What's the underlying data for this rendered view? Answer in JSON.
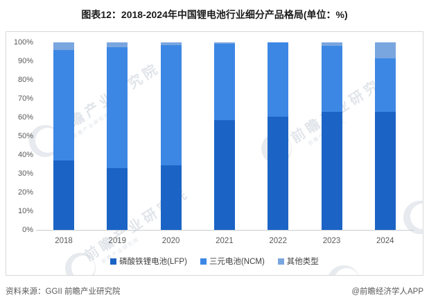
{
  "title": "图表12：2018-2024年中国锂电池行业细分产品格局(单位：%)",
  "footer": {
    "source": "资料来源：GGII 前瞻产业研究院",
    "credit": "@前瞻经济学人APP"
  },
  "watermark": {
    "text": "前瞻产业研究院",
    "sub": "前瞻产业研究院"
  },
  "chart_data": {
    "type": "stacked_bar_100",
    "title": "图表12：2018-2024年中国锂电池行业细分产品格局(单位：%)",
    "categories": [
      "2018",
      "2019",
      "2020",
      "2021",
      "2022",
      "2023",
      "2024"
    ],
    "series": [
      {
        "name": "磷酸铁锂电池(LFP)",
        "color": "#1b64c5",
        "values": [
          37,
          33,
          34.5,
          58.5,
          60.5,
          63,
          63
        ]
      },
      {
        "name": "三元电池(NCM)",
        "color": "#3d87e4",
        "values": [
          59,
          64.5,
          64,
          40.7,
          39.5,
          35,
          28.5
        ]
      },
      {
        "name": "其他类型",
        "color": "#7aa6df",
        "values": [
          4,
          2.5,
          1.5,
          0.8,
          0,
          2,
          8.5
        ]
      }
    ],
    "ylabel": "%",
    "ylim": [
      0,
      100
    ],
    "yticks": [
      "0%",
      "10%",
      "20%",
      "30%",
      "40%",
      "50%",
      "60%",
      "70%",
      "80%",
      "90%",
      "100%"
    ],
    "grid": false,
    "legend_position": "bottom"
  }
}
